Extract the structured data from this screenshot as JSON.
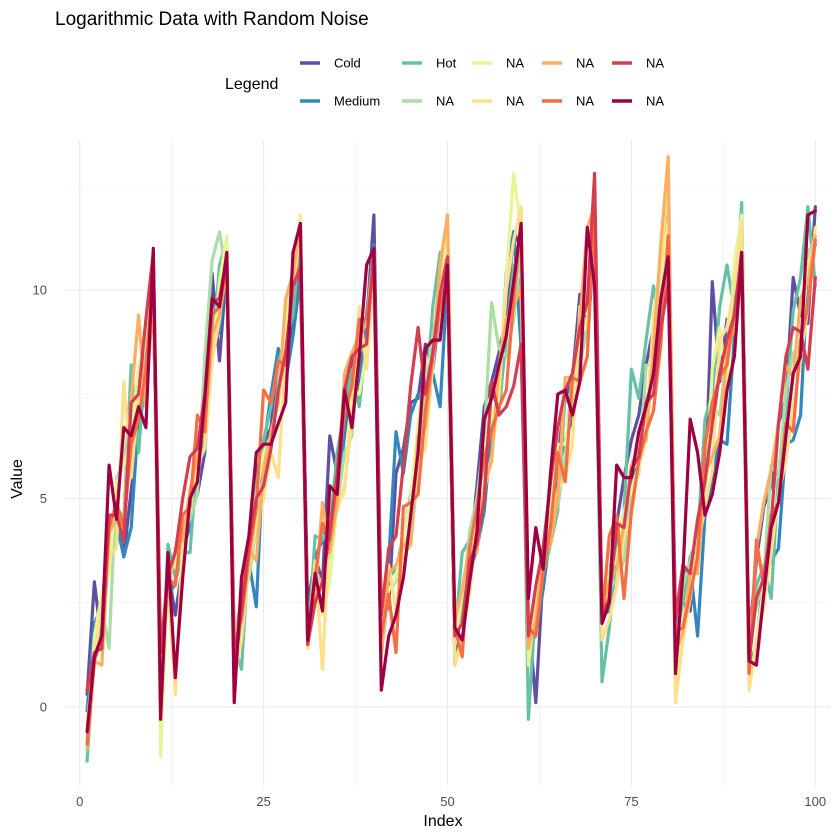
{
  "chart_data": {
    "type": "line",
    "title": "Logarithmic Data with Random Noise",
    "xlabel": "Index",
    "ylabel": "Value",
    "xlim": [
      -2,
      102
    ],
    "ylim": [
      -1.9,
      13.6
    ],
    "x_ticks": [
      0,
      25,
      50,
      75,
      100
    ],
    "y_ticks": [
      0,
      5,
      10
    ],
    "legend_title": "Legend",
    "legend_position": "top",
    "grid": true,
    "x": [
      1,
      2,
      3,
      4,
      5,
      6,
      7,
      8,
      9,
      10,
      11,
      12,
      13,
      14,
      15,
      16,
      17,
      18,
      19,
      20,
      21,
      22,
      23,
      24,
      25,
      26,
      27,
      28,
      29,
      30,
      31,
      32,
      33,
      34,
      35,
      36,
      37,
      38,
      39,
      40,
      41,
      42,
      43,
      44,
      45,
      46,
      47,
      48,
      49,
      50,
      51,
      52,
      53,
      54,
      55,
      56,
      57,
      58,
      59,
      60,
      61,
      62,
      63,
      64,
      65,
      66,
      67,
      68,
      69,
      70,
      71,
      72,
      73,
      74,
      75,
      76,
      77,
      78,
      79,
      80,
      81,
      82,
      83,
      84,
      85,
      86,
      87,
      88,
      89,
      90,
      91,
      92,
      93,
      94,
      95,
      96,
      97,
      98,
      99,
      100
    ],
    "series": [
      {
        "name": "Cold",
        "color": "#5e4fa2",
        "values": [
          0.3,
          3.0,
          1.5,
          3.8,
          4.8,
          3.6,
          5.2,
          6.6,
          7.8,
          10.0,
          0.0,
          3.3,
          2.2,
          3.4,
          4.8,
          5.1,
          6.1,
          10.4,
          8.3,
          10.6,
          0.5,
          2.2,
          3.6,
          5.6,
          6.3,
          6.7,
          8.5,
          8.2,
          9.2,
          11.0,
          2.4,
          3.6,
          3.0,
          6.5,
          5.6,
          7.0,
          8.4,
          7.6,
          9.2,
          11.8,
          2.1,
          2.4,
          5.6,
          6.2,
          7.3,
          7.4,
          8.7,
          8.1,
          9.6,
          10.4,
          1.0,
          2.7,
          3.6,
          5.3,
          7.2,
          7.8,
          8.5,
          9.4,
          11.4,
          11.0,
          2.2,
          0.1,
          3.2,
          5.0,
          6.0,
          7.4,
          7.9,
          9.9,
          9.0,
          11.0,
          2.4,
          3.1,
          4.4,
          5.5,
          6.4,
          7.0,
          8.2,
          9.1,
          9.7,
          11.1,
          1.8,
          2.5,
          2.3,
          4.4,
          5.0,
          10.2,
          7.8,
          9.3,
          9.1,
          10.6,
          1.6,
          3.5,
          4.8,
          5.3,
          6.8,
          7.4,
          10.3,
          9.4,
          9.2,
          12.0
        ]
      },
      {
        "name": "Medium",
        "color": "#3288bd",
        "values": [
          -0.1,
          2.0,
          2.4,
          4.3,
          4.4,
          3.6,
          4.3,
          7.0,
          7.5,
          9.8,
          0.8,
          2.6,
          3.0,
          3.8,
          4.3,
          5.9,
          6.1,
          8.7,
          9.0,
          10.7,
          0.8,
          1.9,
          3.5,
          2.4,
          6.2,
          7.5,
          8.6,
          7.8,
          8.9,
          10.3,
          2.0,
          3.6,
          4.0,
          4.3,
          5.0,
          6.5,
          8.0,
          7.9,
          9.4,
          11.1,
          1.4,
          3.5,
          6.6,
          5.6,
          7.0,
          7.5,
          7.5,
          8.0,
          7.2,
          10.3,
          1.3,
          2.7,
          3.2,
          3.8,
          4.7,
          6.7,
          7.4,
          10.4,
          11.4,
          8.6,
          1.2,
          1.8,
          2.8,
          4.2,
          5.7,
          6.4,
          6.9,
          8.9,
          8.9,
          11.2,
          2.2,
          2.3,
          4.2,
          4.5,
          5.5,
          5.8,
          7.3,
          8.1,
          9.3,
          12.1,
          2.1,
          3.2,
          3.4,
          1.7,
          4.6,
          5.5,
          6.4,
          6.3,
          8.9,
          11.0,
          0.9,
          1.5,
          3.2,
          3.5,
          3.8,
          6.3,
          6.4,
          7.0,
          10.5,
          11.1
        ]
      },
      {
        "name": "Hot",
        "color": "#66c2a5",
        "values": [
          -1.3,
          1.3,
          2.0,
          4.0,
          4.8,
          4.5,
          8.2,
          6.1,
          8.4,
          10.6,
          0.2,
          3.9,
          3.1,
          3.7,
          3.7,
          6.0,
          6.4,
          8.5,
          10.6,
          11.2,
          1.5,
          0.9,
          3.8,
          5.3,
          6.4,
          7.2,
          8.3,
          8.8,
          9.4,
          11.3,
          1.4,
          4.1,
          4.0,
          4.3,
          6.1,
          7.1,
          8.1,
          7.2,
          8.8,
          10.7,
          1.7,
          3.1,
          3.3,
          4.1,
          5.1,
          6.2,
          7.2,
          9.6,
          10.9,
          10.5,
          1.7,
          3.7,
          4.0,
          4.4,
          5.2,
          7.6,
          7.1,
          8.9,
          10.6,
          10.1,
          -0.3,
          2.5,
          3.2,
          3.9,
          4.7,
          7.5,
          7.1,
          8.5,
          9.3,
          10.8,
          0.6,
          1.9,
          3.7,
          4.7,
          8.1,
          7.4,
          8.8,
          10.1,
          8.9,
          10.6,
          1.6,
          2.5,
          3.6,
          4.0,
          6.9,
          7.5,
          9.6,
          10.6,
          9.5,
          12.1,
          1.5,
          2.9,
          3.4,
          2.6,
          5.6,
          7.1,
          9.5,
          10.3,
          12.0,
          10.1
        ]
      },
      {
        "name": "NA",
        "color": "#abdda4",
        "values": [
          -0.8,
          1.2,
          2.4,
          1.4,
          5.5,
          5.8,
          7.2,
          7.3,
          9.0,
          10.3,
          0.3,
          3.1,
          3.5,
          4.2,
          4.5,
          5.1,
          8.4,
          10.7,
          11.4,
          10.3,
          1.8,
          2.5,
          3.1,
          4.3,
          5.5,
          6.3,
          7.7,
          9.2,
          10.4,
          11.2,
          1.7,
          3.3,
          2.9,
          3.7,
          4.8,
          6.1,
          6.5,
          8.5,
          8.8,
          10.1,
          1.2,
          2.8,
          3.0,
          3.6,
          3.9,
          5.7,
          7.8,
          8.9,
          9.8,
          10.2,
          1.5,
          2.4,
          4.2,
          5.0,
          6.5,
          9.7,
          8.6,
          8.4,
          9.3,
          11.1,
          1.8,
          2.7,
          3.9,
          5.1,
          4.8,
          6.0,
          8.1,
          8.2,
          9.1,
          11.2,
          2.1,
          2.8,
          3.1,
          3.5,
          5.1,
          5.6,
          8.2,
          8.2,
          9.6,
          11.7,
          1.3,
          2.9,
          3.5,
          4.1,
          5.0,
          7.2,
          7.0,
          8.5,
          9.3,
          10.3,
          1.7,
          2.4,
          3.1,
          5.8,
          5.5,
          7.6,
          8.5,
          8.6,
          10.9,
          11.2
        ]
      },
      {
        "name": "NA",
        "color": "#e6f598",
        "values": [
          -1.0,
          1.7,
          2.7,
          3.2,
          5.4,
          5.8,
          6.4,
          8.2,
          8.7,
          10.6,
          -1.2,
          3.2,
          3.4,
          4.3,
          4.7,
          5.9,
          6.9,
          8.4,
          10.2,
          11.3,
          1.1,
          2.4,
          3.7,
          5.1,
          6.1,
          6.5,
          7.3,
          9.1,
          10.5,
          11.8,
          1.4,
          3.3,
          2.2,
          3.0,
          4.9,
          5.1,
          7.6,
          7.5,
          8.5,
          10.6,
          1.6,
          2.8,
          3.1,
          4.1,
          5.0,
          6.8,
          8.2,
          8.4,
          9.5,
          11.5,
          1.5,
          2.8,
          3.1,
          4.5,
          6.3,
          6.9,
          7.6,
          10.3,
          12.8,
          11.4,
          1.0,
          2.5,
          3.8,
          4.7,
          6.3,
          6.3,
          7.5,
          8.9,
          9.2,
          11.7,
          2.4,
          3.3,
          3.5,
          4.7,
          5.2,
          5.8,
          7.0,
          9.1,
          10.3,
          11.6,
          0.1,
          2.0,
          3.0,
          3.8,
          4.8,
          8.1,
          9.1,
          7.7,
          10.7,
          11.8,
          0.4,
          1.6,
          2.9,
          3.8,
          5.1,
          6.6,
          7.9,
          8.8,
          10.6,
          11.2
        ]
      },
      {
        "name": "NA",
        "color": "#fee08b",
        "values": [
          -0.4,
          1.2,
          2.4,
          3.6,
          3.8,
          7.8,
          5.5,
          7.5,
          8.1,
          10.2,
          0.9,
          2.9,
          0.3,
          4.0,
          4.8,
          5.8,
          6.2,
          8.3,
          9.3,
          10.9,
          0.7,
          1.6,
          3.4,
          4.4,
          5.0,
          6.1,
          5.5,
          8.6,
          10.0,
          11.6,
          1.4,
          3.5,
          0.9,
          4.5,
          4.7,
          5.3,
          6.9,
          9.6,
          8.1,
          10.5,
          2.1,
          3.4,
          2.3,
          3.8,
          4.3,
          5.9,
          6.2,
          8.2,
          10.2,
          11.8,
          1.0,
          1.7,
          2.7,
          4.4,
          5.2,
          6.0,
          7.5,
          10.0,
          11.2,
          12.0,
          1.9,
          2.6,
          3.4,
          4.3,
          5.2,
          5.5,
          6.3,
          9.6,
          9.1,
          11.5,
          1.6,
          2.1,
          2.9,
          4.1,
          4.6,
          5.8,
          6.4,
          9.4,
          10.6,
          12.6,
          0.1,
          1.6,
          2.6,
          3.9,
          4.8,
          5.7,
          8.8,
          9.1,
          10.1,
          11.6,
          0.4,
          1.6,
          2.4,
          3.7,
          5.1,
          5.9,
          7.2,
          8.3,
          9.6,
          11.5
        ]
      },
      {
        "name": "NA",
        "color": "#fdae61",
        "values": [
          -1.0,
          1.1,
          1.0,
          4.2,
          4.5,
          4.4,
          7.4,
          9.4,
          7.2,
          10.0,
          1.1,
          2.8,
          3.8,
          4.0,
          5.2,
          6.0,
          6.8,
          8.9,
          9.4,
          10.5,
          0.7,
          2.9,
          3.8,
          3.5,
          5.7,
          6.6,
          7.3,
          9.8,
          10.4,
          11.6,
          1.6,
          2.7,
          4.9,
          3.7,
          4.9,
          8.0,
          8.5,
          8.9,
          9.2,
          11.0,
          1.3,
          3.2,
          3.4,
          3.9,
          3.9,
          6.5,
          6.7,
          8.4,
          10.6,
          11.8,
          2.1,
          2.8,
          3.9,
          3.7,
          5.3,
          5.9,
          8.2,
          9.3,
          9.6,
          10.1,
          1.4,
          2.1,
          3.6,
          3.9,
          5.0,
          7.9,
          7.9,
          9.3,
          11.5,
          12.0,
          2.2,
          3.0,
          3.3,
          4.4,
          5.8,
          6.2,
          6.4,
          8.6,
          11.1,
          13.2,
          1.3,
          1.8,
          3.2,
          3.2,
          5.6,
          6.0,
          6.5,
          8.5,
          9.1,
          10.3,
          1.0,
          3.8,
          4.9,
          5.7,
          6.8,
          8.2,
          7.9,
          9.8,
          10.2,
          11.3
        ]
      },
      {
        "name": "NA",
        "color": "#f46d43",
        "values": [
          -0.9,
          1.1,
          1.7,
          4.3,
          4.9,
          4.3,
          6.3,
          6.9,
          8.1,
          10.4,
          1.3,
          3.1,
          2.9,
          4.6,
          4.8,
          7.0,
          6.6,
          9.4,
          9.6,
          10.6,
          1.5,
          2.1,
          3.6,
          4.8,
          7.6,
          7.3,
          8.3,
          8.2,
          10.1,
          10.6,
          1.5,
          3.1,
          4.4,
          4.0,
          5.5,
          7.0,
          7.7,
          9.3,
          9.3,
          10.5,
          1.7,
          2.7,
          1.3,
          4.8,
          4.9,
          5.1,
          7.1,
          8.4,
          9.6,
          10.3,
          1.9,
          1.2,
          3.8,
          4.8,
          6.0,
          6.6,
          7.2,
          7.6,
          9.8,
          11.6,
          1.9,
          1.7,
          3.2,
          4.3,
          6.1,
          5.4,
          7.9,
          7.8,
          8.4,
          12.0,
          2.1,
          4.1,
          4.6,
          2.6,
          4.7,
          5.9,
          6.6,
          7.1,
          8.7,
          11.3,
          1.8,
          1.9,
          2.7,
          3.6,
          6.3,
          7.3,
          7.9,
          8.2,
          9.5,
          10.4,
          0.8,
          4.0,
          2.9,
          4.6,
          4.9,
          6.8,
          6.6,
          8.8,
          9.6,
          11.2
        ]
      },
      {
        "name": "NA",
        "color": "#d53e4f",
        "values": [
          0.4,
          1.3,
          1.4,
          4.6,
          4.6,
          4.0,
          7.3,
          7.5,
          9.3,
          10.9,
          1.3,
          3.2,
          3.7,
          5.0,
          6.0,
          6.2,
          7.5,
          9.7,
          9.8,
          10.8,
          1.1,
          2.3,
          3.9,
          5.0,
          5.3,
          6.2,
          7.6,
          8.5,
          10.1,
          10.5,
          1.5,
          2.5,
          3.0,
          4.2,
          5.6,
          7.6,
          8.4,
          8.6,
          8.7,
          11.0,
          2.2,
          3.8,
          4.1,
          5.8,
          7.7,
          9.1,
          7.5,
          8.5,
          9.9,
          10.8,
          1.7,
          2.0,
          3.5,
          3.9,
          5.0,
          7.8,
          7.0,
          7.2,
          7.7,
          8.7,
          1.7,
          2.9,
          3.8,
          5.4,
          6.7,
          7.6,
          8.0,
          9.1,
          9.7,
          12.8,
          2.2,
          2.6,
          4.4,
          4.3,
          5.7,
          6.0,
          7.3,
          7.5,
          9.1,
          10.1,
          2.1,
          3.4,
          3.2,
          4.5,
          5.4,
          6.8,
          8.0,
          8.8,
          9.4,
          10.9,
          1.1,
          2.6,
          3.1,
          4.4,
          6.8,
          8.4,
          9.1,
          9.0,
          8.1,
          10.3
        ]
      },
      {
        "name": "NA",
        "color": "#9e0142",
        "values": [
          -0.6,
          1.2,
          1.7,
          5.8,
          4.5,
          6.7,
          6.5,
          7.2,
          6.7,
          11.0,
          -0.3,
          3.7,
          0.7,
          3.1,
          5.0,
          5.4,
          7.4,
          9.8,
          9.6,
          10.9,
          0.1,
          3.1,
          4.1,
          6.1,
          6.3,
          6.3,
          6.8,
          7.3,
          10.9,
          11.6,
          1.6,
          3.2,
          2.3,
          5.3,
          5.1,
          7.6,
          6.7,
          8.4,
          10.6,
          11.0,
          0.4,
          1.7,
          2.2,
          3.1,
          4.6,
          6.1,
          8.6,
          8.8,
          8.8,
          10.6,
          1.9,
          1.6,
          3.0,
          4.2,
          6.9,
          7.4,
          8.2,
          8.9,
          10.2,
          11.6,
          2.6,
          4.3,
          3.3,
          5.6,
          7.5,
          7.6,
          7.0,
          7.8,
          11.5,
          10.1,
          2.0,
          2.5,
          5.8,
          5.5,
          5.5,
          6.6,
          7.2,
          8.0,
          9.8,
          10.8,
          0.8,
          3.2,
          6.9,
          6.1,
          4.6,
          5.1,
          6.1,
          7.6,
          8.4,
          10.9,
          1.1,
          1.0,
          2.7,
          4.3,
          4.9,
          6.5,
          8.0,
          8.4,
          11.8,
          11.9
        ]
      }
    ]
  }
}
